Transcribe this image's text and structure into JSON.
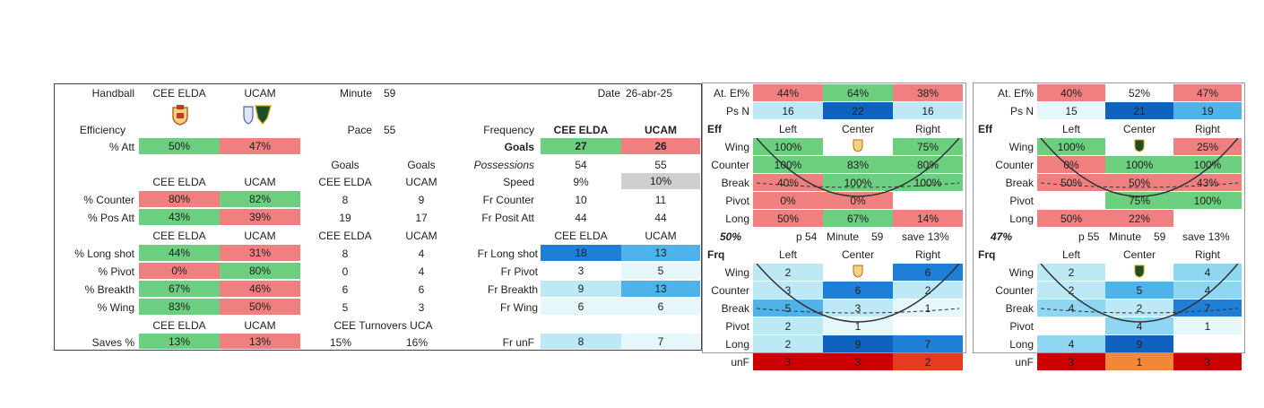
{
  "colors": {
    "green": "#6ccf7f",
    "red": "#f08080",
    "grey": "#cfcfcf",
    "b1": "#e6f7fc",
    "b2": "#bde9f7",
    "b3": "#8fd6f3",
    "b4": "#4fb3ea",
    "b5": "#1f7fd6",
    "b6": "#0f63be",
    "dred": "#cc0000",
    "red2": "#e53b1f",
    "orange": "#f2873a"
  },
  "left": {
    "handball": "Handball",
    "team_a": "CEE ELDA",
    "team_b": "UCAM",
    "minute_label": "Minute",
    "minute": "59",
    "date_label": "Date",
    "date": "26-abr-25",
    "efficiency": "Efficiency",
    "pace_label": "Pace",
    "pace": "55",
    "att_label": "% Att",
    "att_a": "50%",
    "att_b": "47%",
    "freq_label": "Frequency",
    "freq_a": "CEE ELDA",
    "freq_b": "UCAM",
    "freq_rows": [
      {
        "label": "Goals",
        "a": "27",
        "b": "26"
      },
      {
        "label": "Possessions",
        "a": "54",
        "b": "55"
      },
      {
        "label": "Speed",
        "a": "9%",
        "b": "10%"
      },
      {
        "label": "Fr Counter",
        "a": "10",
        "b": "11"
      },
      {
        "label": "Fr Posit Att",
        "a": "44",
        "b": "44"
      }
    ],
    "goals_head_a": "Goals",
    "goals_head_b": "Goals",
    "head1": {
      "a": "CEE ELDA",
      "b": "UCAM",
      "ga": "CEE ELDA",
      "gb": "UCAM"
    },
    "sec1": [
      {
        "label": "% Counter",
        "a": "80%",
        "b": "82%",
        "ga": "8",
        "gb": "9"
      },
      {
        "label": "% Pos Att",
        "a": "43%",
        "b": "39%",
        "ga": "19",
        "gb": "17"
      }
    ],
    "head2": {
      "a": "CEE ELDA",
      "b": "UCAM",
      "ga": "CEE ELDA",
      "gb": "UCAM",
      "fa": "CEE ELDA",
      "fb": "UCAM"
    },
    "sec2": [
      {
        "label": "% Long shot",
        "a": "44%",
        "b": "31%",
        "ga": "8",
        "gb": "4",
        "flabel": "Fr Long shot",
        "fa": "18",
        "fb": "13"
      },
      {
        "label": "% Pivot",
        "a": "0%",
        "b": "80%",
        "ga": "0",
        "gb": "4",
        "flabel": "Fr Pivot",
        "fa": "3",
        "fb": "5"
      },
      {
        "label": "% Breakth",
        "a": "67%",
        "b": "46%",
        "ga": "6",
        "gb": "6",
        "flabel": "Fr Breakth",
        "fa": "9",
        "fb": "13"
      },
      {
        "label": "% Wing",
        "a": "83%",
        "b": "50%",
        "ga": "5",
        "gb": "3",
        "flabel": "Fr Wing",
        "fa": "6",
        "fb": "6"
      }
    ],
    "head3": {
      "a": "CEE ELDA",
      "b": "UCAM",
      "turnovers": "CEE Turnovers UCA"
    },
    "saves": {
      "label": "Saves %",
      "a": "13%",
      "b": "13%",
      "ta": "15%",
      "tb": "16%",
      "flabel": "Fr unF",
      "fa": "8",
      "fb": "7"
    }
  },
  "grids": [
    {
      "at_label": "At. Ef%",
      "at": [
        "44%",
        "64%",
        "38%"
      ],
      "ps_label": "Ps N",
      "ps": [
        "16",
        "22",
        "16"
      ],
      "eff": "Eff",
      "cols": [
        "Left",
        "Center",
        "Right"
      ],
      "rows": [
        "Wing",
        "Counter",
        "Break",
        "Pivot",
        "Long"
      ],
      "eff_vals": [
        [
          "100%",
          "",
          "75%"
        ],
        [
          "100%",
          "83%",
          "80%"
        ],
        [
          "40%",
          "100%",
          "100%"
        ],
        [
          "0%",
          "0%",
          ""
        ],
        [
          "50%",
          "67%",
          "14%"
        ]
      ],
      "summary": {
        "pct": "50%",
        "p": "p 54",
        "minute": "Minute",
        "mval": "59",
        "save": "save 13%"
      },
      "frq": "Frq",
      "frq_vals": [
        [
          "2",
          "",
          "6"
        ],
        [
          "3",
          "6",
          "2"
        ],
        [
          "5",
          "3",
          "1"
        ],
        [
          "2",
          "1",
          ""
        ],
        [
          "2",
          "9",
          "7"
        ]
      ],
      "unf_label": "unF",
      "unf": [
        "3",
        "3",
        "2"
      ]
    },
    {
      "at_label": "At. Ef%",
      "at": [
        "40%",
        "52%",
        "47%"
      ],
      "ps_label": "Ps N",
      "ps": [
        "15",
        "21",
        "19"
      ],
      "eff": "Eff",
      "cols": [
        "Left",
        "Center",
        "Right"
      ],
      "rows": [
        "Wing",
        "Counter",
        "Break",
        "Pivot",
        "Long"
      ],
      "eff_vals": [
        [
          "100%",
          "",
          "25%"
        ],
        [
          "0%",
          "100%",
          "100%"
        ],
        [
          "50%",
          "50%",
          "43%"
        ],
        [
          "",
          "75%",
          "100%"
        ],
        [
          "50%",
          "22%",
          ""
        ]
      ],
      "summary": {
        "pct": "47%",
        "p": "p 55",
        "minute": "Minute",
        "mval": "59",
        "save": "save 13%"
      },
      "frq": "Frq",
      "frq_vals": [
        [
          "2",
          "",
          "4"
        ],
        [
          "2",
          "5",
          "4"
        ],
        [
          "4",
          "2",
          "7"
        ],
        [
          "",
          "4",
          "1"
        ],
        [
          "4",
          "9",
          ""
        ]
      ],
      "unf_label": "unF",
      "unf": [
        "3",
        "1",
        "3"
      ]
    }
  ]
}
